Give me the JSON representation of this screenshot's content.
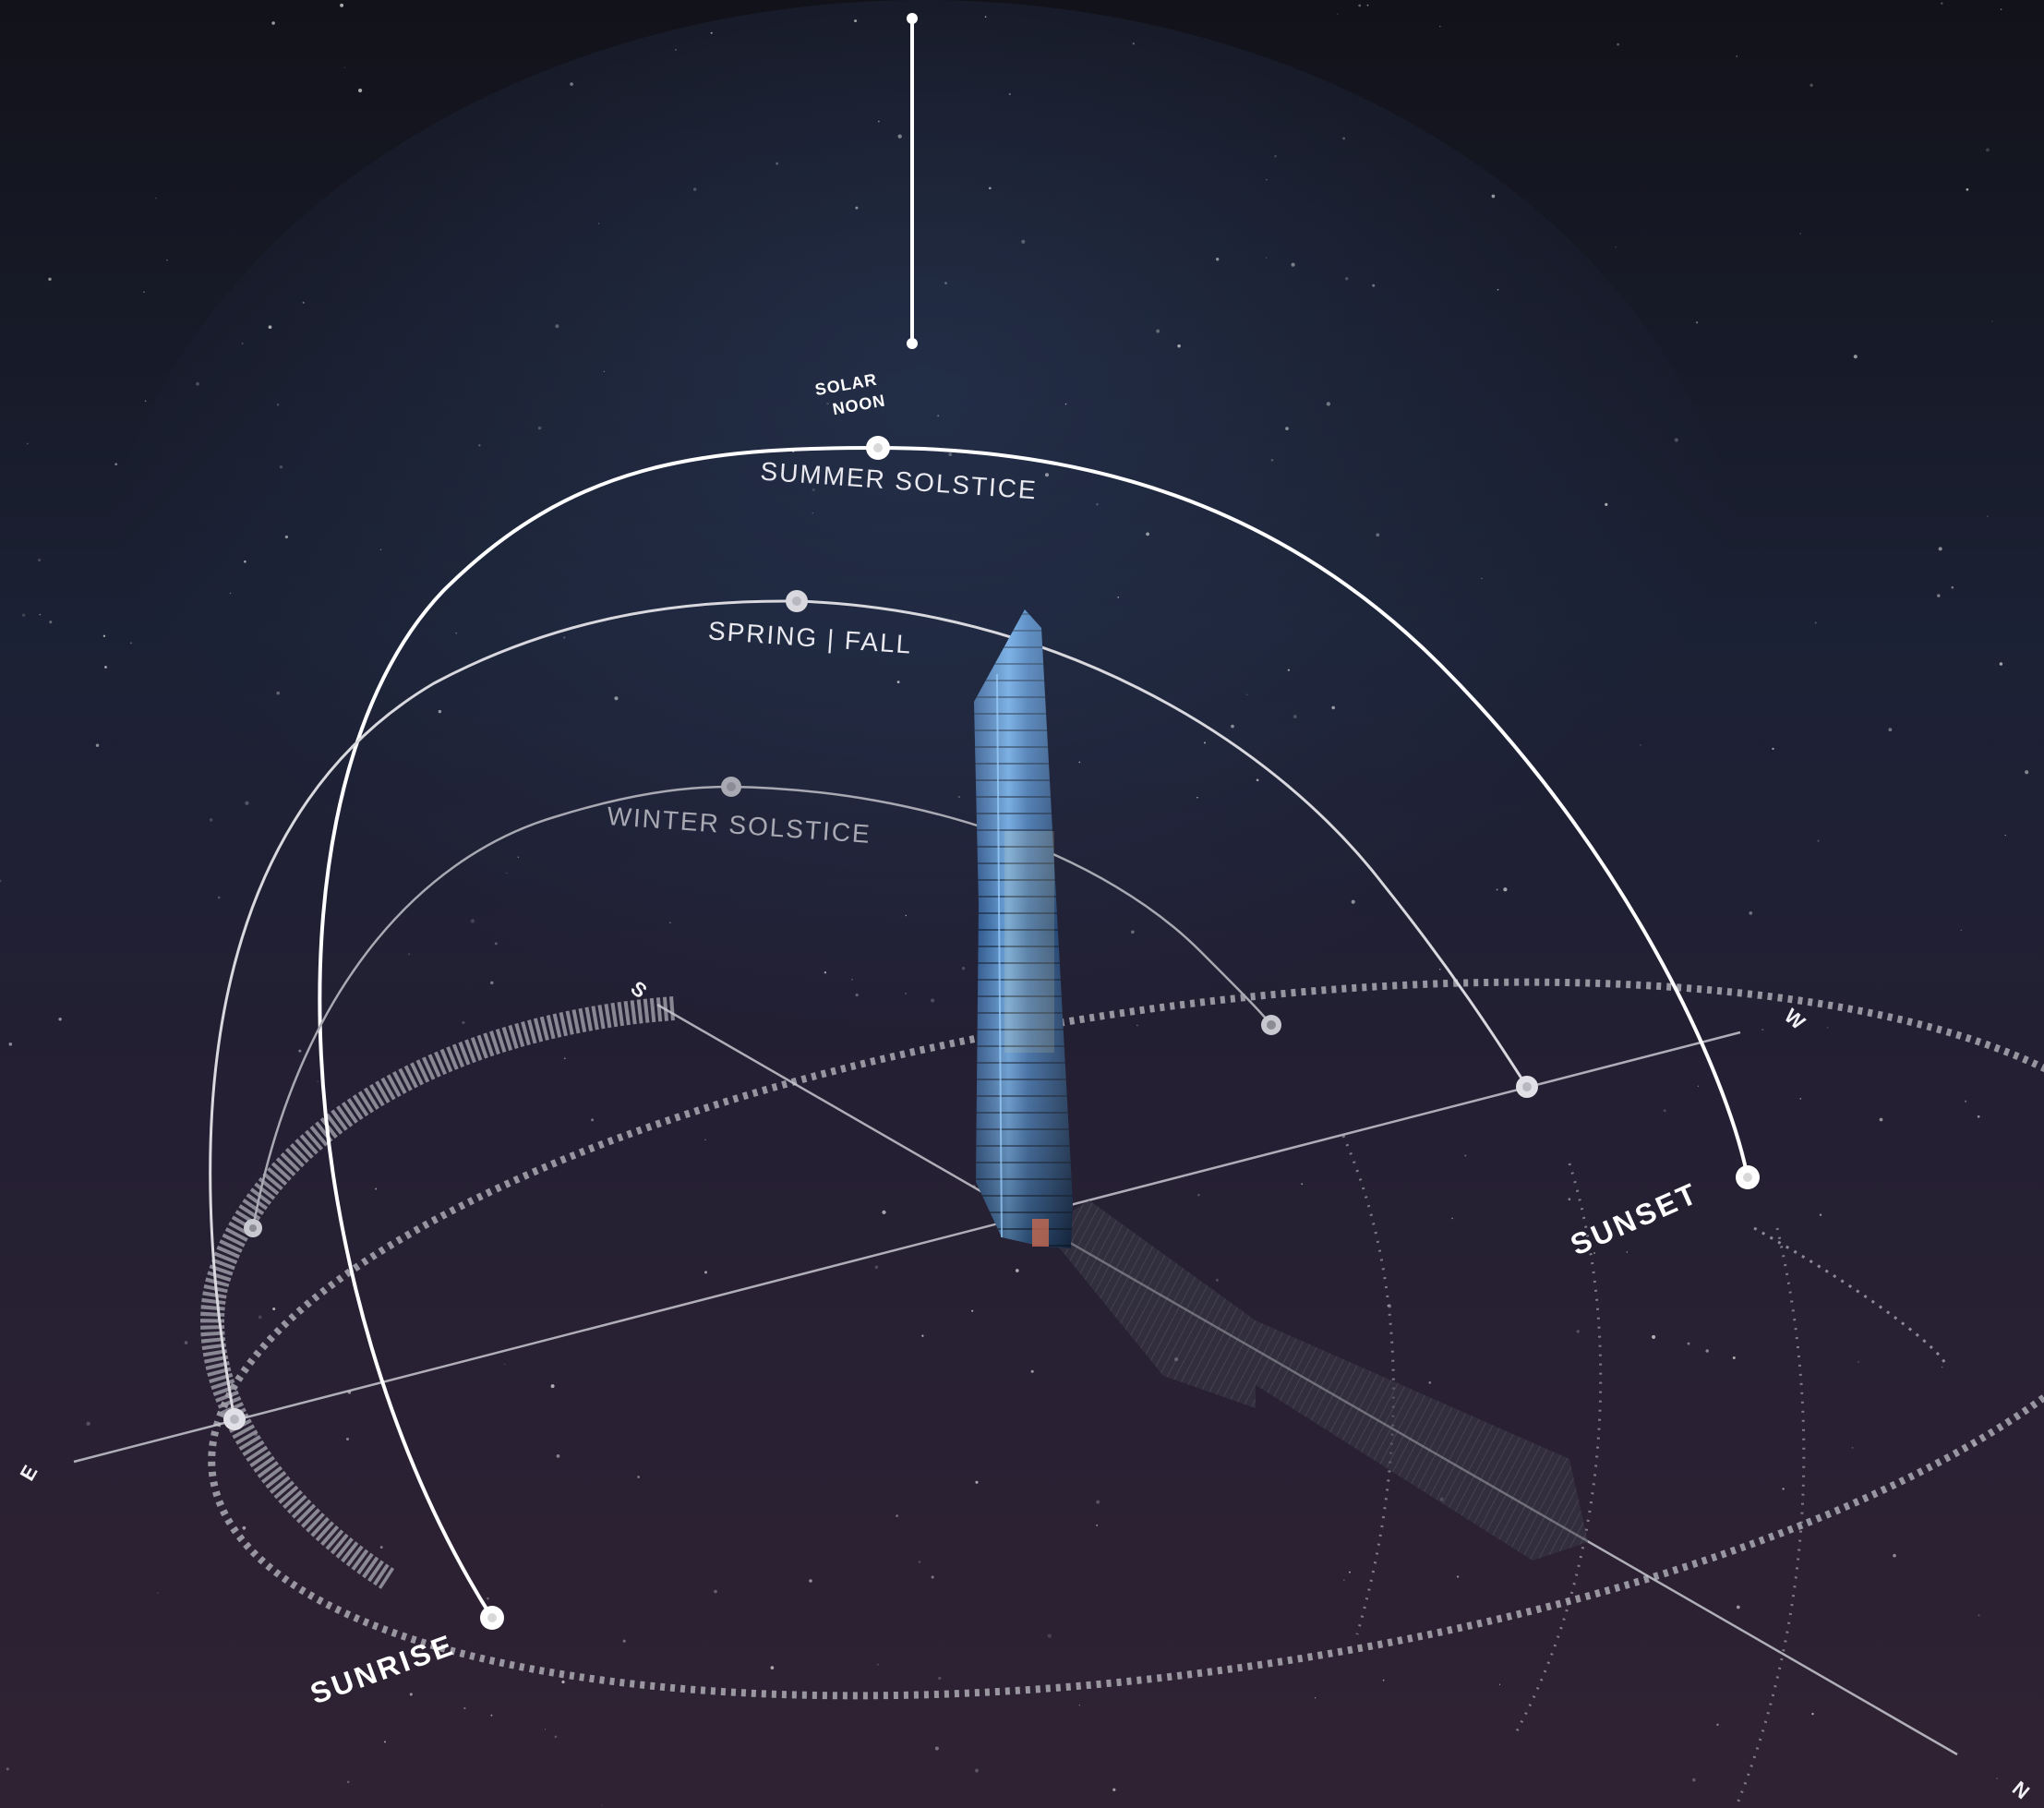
{
  "labels": {
    "solar_noon_line1": "SOLAR",
    "solar_noon_line2": "NOON",
    "summer_solstice": "SUMMER SOLSTICE",
    "spring_fall": "SPRING  |  FALL",
    "winter_solstice": "WINTER SOLSTICE",
    "sunrise": "SUNRISE",
    "sunset": "SUNSET"
  },
  "compass": {
    "south": "S",
    "west": "W",
    "east": "E",
    "north": "N"
  },
  "colors": {
    "sky_top": "#12121a",
    "sky_mid": "#1d2338",
    "sky_bottom": "#2e2233",
    "path_summer": "#ffffff",
    "path_spring_fall": "#d8d8de",
    "path_winter": "#a9a9b3",
    "tower_glass": "#4a7fbf",
    "horizon_ring": "#b8b8bf"
  },
  "icons": {
    "building": "skyscraper-illustration",
    "sun_marker": "circle-dot-icon"
  }
}
